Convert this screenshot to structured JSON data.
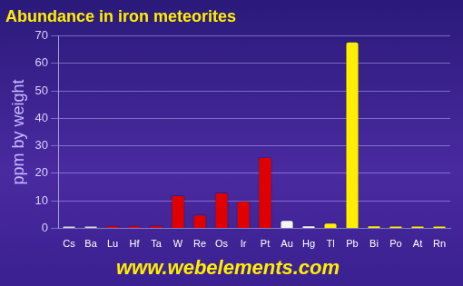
{
  "chart_data": {
    "type": "bar",
    "title": "Abundance in iron meteorites",
    "y_label": "ppm by weight",
    "annotation": "www.webelements.com",
    "categories": [
      "Cs",
      "Ba",
      "Lu",
      "Hf",
      "Ta",
      "W",
      "Re",
      "Os",
      "Ir",
      "Pt",
      "Au",
      "Hg",
      "Tl",
      "Pb",
      "Bi",
      "Po",
      "At",
      "Rn"
    ],
    "values": [
      0,
      0,
      0.5,
      0.5,
      1,
      12,
      5,
      13,
      10,
      26,
      3,
      1,
      2,
      68,
      1,
      0.5,
      0.5,
      0.5
    ],
    "colors": [
      "#d8d8e8",
      "#d8d8e8",
      "#e00000",
      "#e00000",
      "#e00000",
      "#e00000",
      "#e00000",
      "#e00000",
      "#e00000",
      "#e00000",
      "#f4f4f4",
      "#f4f4f4",
      "#ffee00",
      "#ffee00",
      "#ffee00",
      "#ffee00",
      "#ffee00",
      "#ffee00"
    ],
    "ylim": [
      0,
      70
    ],
    "yticks": [
      0,
      10,
      20,
      30,
      40,
      50,
      60,
      70
    ],
    "grid": true
  }
}
